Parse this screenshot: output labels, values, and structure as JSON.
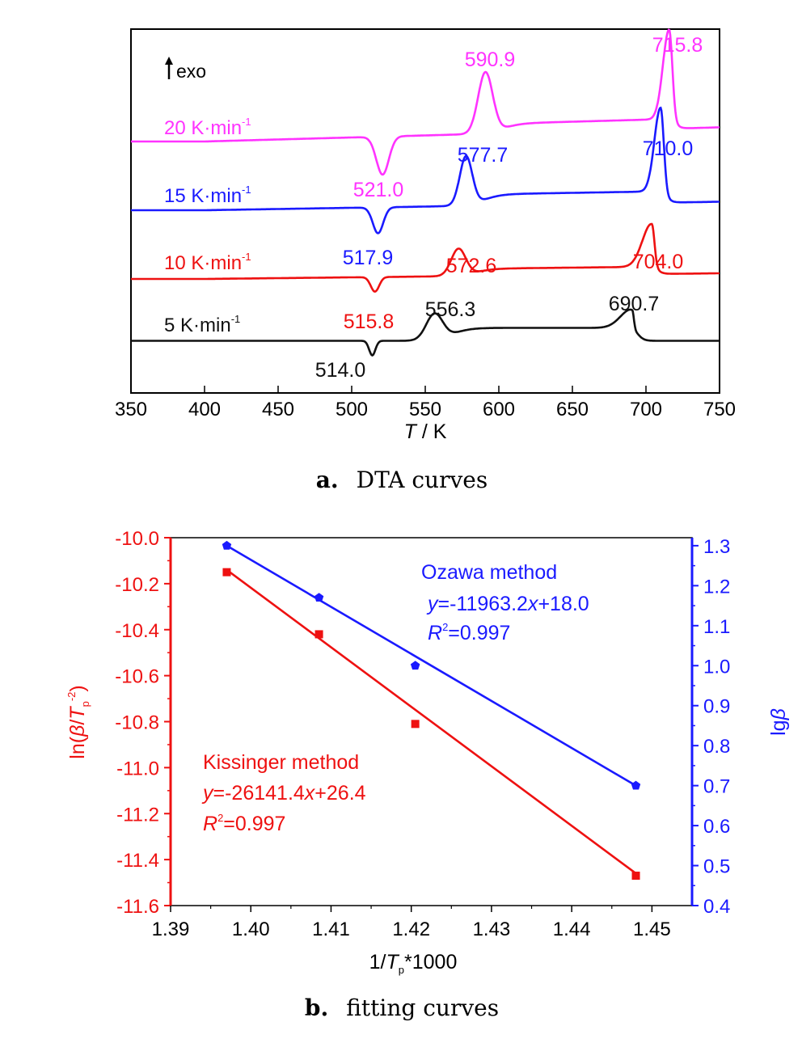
{
  "colors": {
    "magenta": "#ff33ff",
    "blue": "#1a1aff",
    "red": "#ee1111",
    "black": "#111111"
  },
  "panel_a": {
    "caption_letter": "a.",
    "caption_text": "DTA curves",
    "exo_label": "exo",
    "xlabel_italic": "T",
    "xlabel_rest": " / K",
    "curves": [
      {
        "rate": "20",
        "unit": "K·min",
        "exp": "-1",
        "color": "magenta"
      },
      {
        "rate": "15",
        "unit": "K·min",
        "exp": "-1",
        "color": "blue"
      },
      {
        "rate": "10",
        "unit": "K·min",
        "exp": "-1",
        "color": "red"
      },
      {
        "rate": "5",
        "unit": "K·min",
        "exp": "-1",
        "color": "black"
      }
    ],
    "peak_labels": [
      {
        "text": "715.8",
        "color": "magenta"
      },
      {
        "text": "590.9",
        "color": "magenta"
      },
      {
        "text": "521.0",
        "color": "magenta"
      },
      {
        "text": "710.0",
        "color": "blue"
      },
      {
        "text": "577.7",
        "color": "blue"
      },
      {
        "text": "517.9",
        "color": "blue"
      },
      {
        "text": "704.0",
        "color": "red"
      },
      {
        "text": "572.6",
        "color": "red"
      },
      {
        "text": "515.8",
        "color": "red"
      },
      {
        "text": "690.7",
        "color": "black"
      },
      {
        "text": "556.3",
        "color": "black"
      },
      {
        "text": "514.0",
        "color": "black"
      }
    ]
  },
  "panel_b": {
    "caption_letter": "b.",
    "caption_text": "fitting curves",
    "xlabel_pre": "1/",
    "xlabel_italic": "T",
    "xlabel_sub": "p",
    "xlabel_post": "*1000",
    "ylabel_left_pre": "ln(",
    "ylabel_left_beta": "β",
    "ylabel_left_slash": "/",
    "ylabel_left_T": "T",
    "ylabel_left_sub": "p",
    "ylabel_left_sup": "-2",
    "ylabel_left_close": ")",
    "ylabel_right_pre": "lg",
    "ylabel_right_beta": "β",
    "ozawa": {
      "title": "Ozawa method",
      "eq_y": "y",
      "eq_mid": "=-11963.2",
      "eq_x": "x",
      "eq_end": "+18.0",
      "r_R": "R",
      "r_sup": "2",
      "r_val": "=0.997"
    },
    "kissinger": {
      "title": "Kissinger method",
      "eq_y": "y",
      "eq_mid": "=-26141.4",
      "eq_x": "x",
      "eq_end": "+26.4",
      "r_R": "R",
      "r_sup": "2",
      "r_val": "=0.997"
    }
  },
  "chart_data": [
    {
      "type": "line",
      "xlabel": "T / K",
      "ylabel": "",
      "xlim": [
        350,
        750
      ],
      "xticks": [
        350,
        400,
        450,
        500,
        550,
        600,
        650,
        700,
        750
      ],
      "series": [
        {
          "name": "20 K·min-1",
          "color": "magenta",
          "baseline": 1.15,
          "peaks": [
            {
              "t": 521.0,
              "kind": "endo"
            },
            {
              "t": 590.9,
              "kind": "exo"
            },
            {
              "t": 715.8,
              "kind": "exo"
            }
          ]
        },
        {
          "name": "15 K·min-1",
          "color": "blue",
          "baseline": 0.65,
          "peaks": [
            {
              "t": 517.9,
              "kind": "endo"
            },
            {
              "t": 577.7,
              "kind": "exo"
            },
            {
              "t": 710.0,
              "kind": "exo"
            }
          ]
        },
        {
          "name": "10 K·min-1",
          "color": "red",
          "baseline": 0.15,
          "peaks": [
            {
              "t": 515.8,
              "kind": "endo"
            },
            {
              "t": 572.6,
              "kind": "exo"
            },
            {
              "t": 704.0,
              "kind": "exo"
            }
          ]
        },
        {
          "name": "5 K·min-1",
          "color": "black",
          "baseline": -0.3,
          "peaks": [
            {
              "t": 514.0,
              "kind": "endo"
            },
            {
              "t": 556.3,
              "kind": "exo"
            },
            {
              "t": 690.7,
              "kind": "exo"
            }
          ]
        }
      ]
    },
    {
      "type": "scatter",
      "xlabel": "1/Tp*1000",
      "ylabel": "ln(β/Tp-2)",
      "y2label": "lgβ",
      "xlim": [
        1.39,
        1.455
      ],
      "xticks": [
        1.39,
        1.4,
        1.41,
        1.42,
        1.43,
        1.44,
        1.45
      ],
      "ylim": [
        -11.6,
        -10.0
      ],
      "yticks": [
        -10.0,
        -10.2,
        -10.4,
        -10.6,
        -10.8,
        -11.0,
        -11.2,
        -11.4,
        -11.6
      ],
      "y2lim": [
        0.4,
        1.32
      ],
      "y2ticks": [
        1.3,
        1.2,
        1.1,
        1.0,
        0.9,
        0.8,
        0.7,
        0.6,
        0.5,
        0.4
      ],
      "series": [
        {
          "name": "Kissinger method",
          "axis": "left",
          "color": "red",
          "marker": "square",
          "x": [
            1.397,
            1.4085,
            1.4205,
            1.448
          ],
          "y": [
            -10.15,
            -10.42,
            -10.81,
            -11.47
          ],
          "fit_x": [
            1.397,
            1.448
          ],
          "fit_y": [
            -10.14,
            -11.46
          ]
        },
        {
          "name": "Ozawa method",
          "axis": "right",
          "color": "blue",
          "marker": "pentagon",
          "x": [
            1.397,
            1.4085,
            1.4205,
            1.448
          ],
          "y": [
            1.3,
            1.17,
            1.0,
            0.7
          ],
          "fit_x": [
            1.397,
            1.448
          ],
          "fit_y": [
            1.3,
            0.7
          ]
        }
      ]
    }
  ]
}
